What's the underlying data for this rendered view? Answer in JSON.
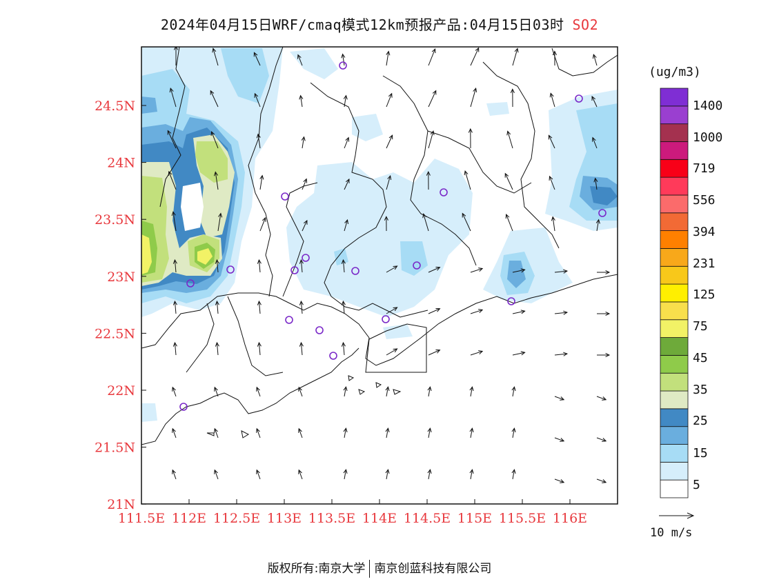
{
  "title": {
    "main": "2024年04月15日WRF/cmaq模式12km预报产品:04月15日03时",
    "species": "SO2"
  },
  "axes": {
    "x_ticks": [
      "111.5E",
      "112E",
      "112.5E",
      "113E",
      "113.5E",
      "114E",
      "114.5E",
      "115E",
      "115.5E",
      "116E"
    ],
    "y_ticks": [
      "24.5N",
      "24N",
      "23.5N",
      "23N",
      "22.5N",
      "22N",
      "21.5N",
      "21N"
    ],
    "label_color": "#e8383d"
  },
  "colorbar": {
    "unit": "(ug/m3)",
    "levels": [
      "1400",
      "1000",
      "719",
      "556",
      "394",
      "231",
      "125",
      "75",
      "45",
      "35",
      "25",
      "15",
      "5"
    ],
    "colors": [
      "#ffffff",
      "#d6eefb",
      "#a7dcf5",
      "#6aaede",
      "#4189c4",
      "#dfeac4",
      "#c2e07c",
      "#8fcb4a",
      "#6eaa3a",
      "#f2f266",
      "#f8df4c",
      "#ffef00",
      "#f8c81a",
      "#f8a81a",
      "#ff8000",
      "#f26a35",
      "#fb6b6b",
      "#ff3a5a",
      "#f80018",
      "#cc1a7c",
      "#a4314f",
      "#9a3fd0",
      "#7f2ed4"
    ]
  },
  "wind_scale": {
    "label": "10 m/s"
  },
  "map_colors": {
    "light_blue": "#d6eefb",
    "blue": "#a7dcf5",
    "mid_blue": "#6aaede",
    "dark_blue": "#4189c4",
    "pale_green": "#dfeac4",
    "green": "#c2e07c",
    "dark_green": "#8fcb4a",
    "yellow": "#f2f266",
    "site_marker": "#7a28c8"
  },
  "footer": {
    "copyright": "版权所有:南京大学",
    "company": "南京创蓝科技有限公司"
  }
}
